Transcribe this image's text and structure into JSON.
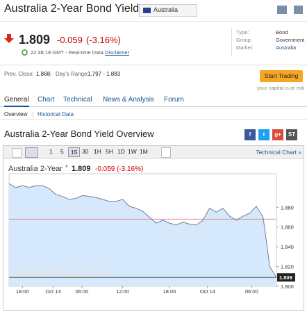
{
  "header": {
    "title": "Australia 2-Year Bond Yield",
    "country": "Australia"
  },
  "quote": {
    "price": "1.809",
    "change": "-0.059",
    "change_pct": "(-3.16%)",
    "time": "22:38:19 GMT - Real-time Data.",
    "disclaimer": "Disclaimer"
  },
  "info": {
    "rows": [
      [
        "Type:",
        "Bond"
      ],
      [
        "Group:",
        "Government"
      ],
      [
        "Market:",
        "Australia"
      ]
    ]
  },
  "stats": {
    "prev_close_label": "Prev. Close:",
    "prev_close": "1.868",
    "range_label": "Day's Range:",
    "range": "1.797 - 1.883"
  },
  "trade": {
    "button": "Start Trading",
    "note": "your capital is at risk"
  },
  "tabs": [
    "General",
    "Chart",
    "Technical",
    "News & Analysis",
    "Forum"
  ],
  "subtabs": [
    "Overview",
    "Historical Data"
  ],
  "section_title": "Australia 2-Year Bond Yield Overview",
  "share": [
    "f",
    "t",
    "g+",
    "ST"
  ],
  "toolbar": {
    "periods": [
      "1",
      "5",
      "15",
      "30",
      "1H",
      "5H",
      "1D",
      "1W",
      "1M"
    ],
    "technical_chart": "Technical Chart »"
  },
  "chart_data": {
    "type": "line",
    "watermark": "Investing.com",
    "legend": {
      "value": "1.809",
      "change": "-0.059",
      "change_pct": "(-3.16%)"
    },
    "series": [
      {
        "name": "Australia 2-Year",
        "color": "#6b7f99",
        "fill": "#d6e8fb",
        "values": [
          1.904,
          1.9,
          1.902,
          1.9,
          1.902,
          1.902,
          1.899,
          1.893,
          1.891,
          1.888,
          1.889,
          1.892,
          1.891,
          1.89,
          1.888,
          1.886,
          1.886,
          1.888,
          1.881,
          1.879,
          1.876,
          1.87,
          1.864,
          1.867,
          1.864,
          1.862,
          1.865,
          1.863,
          1.862,
          1.867,
          1.879,
          1.875,
          1.879,
          1.871,
          1.867,
          1.871,
          1.874,
          1.881,
          1.87,
          1.82,
          1.809
        ]
      }
    ],
    "reference_line": {
      "value": 1.868,
      "color": "#d98a8a"
    },
    "ylim": [
      1.8,
      1.914
    ],
    "yticks": [
      {
        "value": 1.8,
        "label": "1.800"
      },
      {
        "value": 1.82,
        "label": "1.820"
      },
      {
        "value": 1.84,
        "label": "1.840"
      },
      {
        "value": 1.86,
        "label": "1.860"
      },
      {
        "value": 1.88,
        "label": "1.880"
      }
    ],
    "xlim": [
      0,
      40
    ],
    "xticks": [
      {
        "value": 2,
        "label": "18:00"
      },
      {
        "value": 6.6,
        "label": "Oct 13"
      },
      {
        "value": 10.9,
        "label": "06:00"
      },
      {
        "value": 17,
        "label": "12:00"
      },
      {
        "value": 24,
        "label": "18:00"
      },
      {
        "value": 29.7,
        "label": "Oct 14"
      },
      {
        "value": 36.3,
        "label": "06:00"
      }
    ]
  }
}
